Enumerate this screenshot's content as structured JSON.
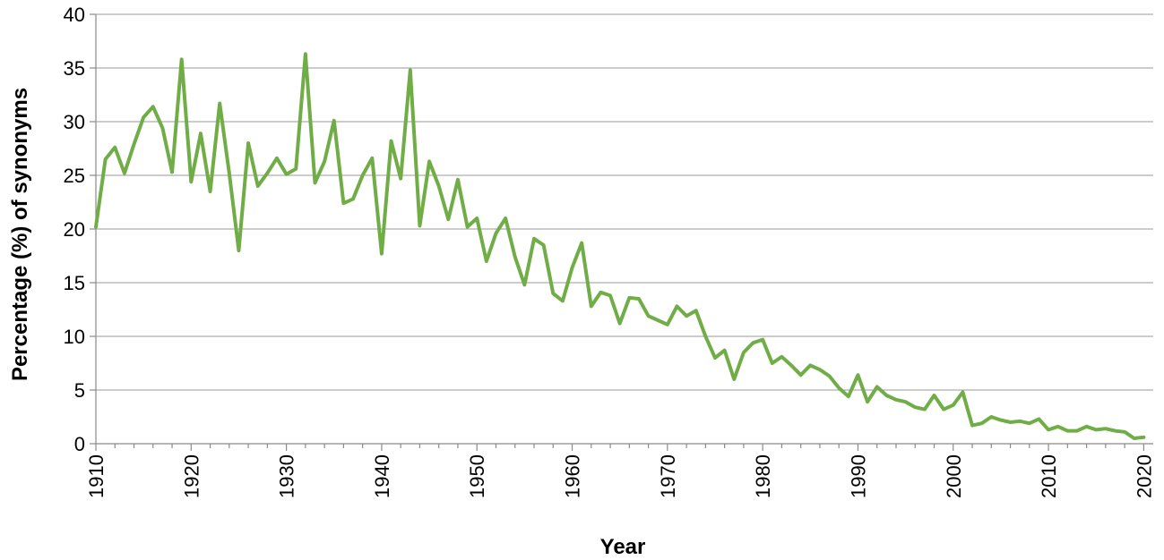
{
  "chart_data": {
    "type": "line",
    "title": "",
    "xlabel": "Year",
    "ylabel": "Percentage (%) of synonyms",
    "xlim": [
      1910,
      2021
    ],
    "ylim": [
      0,
      40
    ],
    "yticks": [
      0,
      5,
      10,
      15,
      20,
      25,
      30,
      35,
      40
    ],
    "xticks": [
      1910,
      1920,
      1930,
      1940,
      1950,
      1960,
      1970,
      1980,
      1990,
      2000,
      2010,
      2020
    ],
    "grid": "horizontal",
    "legend": "none",
    "colors": {
      "series": "#70ad47",
      "grid": "#9a9a9a",
      "axis": "#8a8a8a"
    },
    "series": [
      {
        "x": [
          1910,
          1911,
          1912,
          1913,
          1914,
          1915,
          1916,
          1917,
          1918,
          1919,
          1920,
          1921,
          1922,
          1923,
          1924,
          1925,
          1926,
          1927,
          1928,
          1929,
          1930,
          1931,
          1932,
          1933,
          1934,
          1935,
          1936,
          1937,
          1938,
          1939,
          1940,
          1941,
          1942,
          1943,
          1944,
          1945,
          1946,
          1947,
          1948,
          1949,
          1950,
          1951,
          1952,
          1953,
          1954,
          1955,
          1956,
          1957,
          1958,
          1959,
          1960,
          1961,
          1962,
          1963,
          1964,
          1965,
          1966,
          1967,
          1968,
          1969,
          1970,
          1971,
          1972,
          1973,
          1974,
          1975,
          1976,
          1977,
          1978,
          1979,
          1980,
          1981,
          1982,
          1983,
          1984,
          1985,
          1986,
          1987,
          1988,
          1989,
          1990,
          1991,
          1992,
          1993,
          1994,
          1995,
          1996,
          1997,
          1998,
          1999,
          2000,
          2001,
          2002,
          2003,
          2004,
          2005,
          2006,
          2007,
          2008,
          2009,
          2010,
          2011,
          2012,
          2013,
          2014,
          2015,
          2016,
          2017,
          2018,
          2019,
          2020
        ],
        "values": [
          20.2,
          26.5,
          27.6,
          25.2,
          27.9,
          30.4,
          31.4,
          29.4,
          25.3,
          35.8,
          24.4,
          28.9,
          23.5,
          31.7,
          25.2,
          18.0,
          28.0,
          24.0,
          25.2,
          26.6,
          25.1,
          25.6,
          36.3,
          24.3,
          26.3,
          30.1,
          22.4,
          22.8,
          25.0,
          26.6,
          17.7,
          28.2,
          24.7,
          34.8,
          20.3,
          26.3,
          24.0,
          20.9,
          24.6,
          20.2,
          21.0,
          17.0,
          19.6,
          21.0,
          17.4,
          14.8,
          19.1,
          18.5,
          14.0,
          13.3,
          16.4,
          18.7,
          12.8,
          14.1,
          13.8,
          11.2,
          13.6,
          13.5,
          11.9,
          11.5,
          11.1,
          12.8,
          11.9,
          12.4,
          10.0,
          8.0,
          8.7,
          6.0,
          8.5,
          9.4,
          9.7,
          7.5,
          8.1,
          7.3,
          6.4,
          7.3,
          6.9,
          6.3,
          5.2,
          4.4,
          6.4,
          3.9,
          5.3,
          4.5,
          4.1,
          3.9,
          3.4,
          3.2,
          4.5,
          3.2,
          3.6,
          4.8,
          1.7,
          1.9,
          2.5,
          2.2,
          2.0,
          2.1,
          1.9,
          2.3,
          1.3,
          1.6,
          1.2,
          1.2,
          1.6,
          1.3,
          1.4,
          1.2,
          1.1,
          0.5,
          0.6
        ]
      }
    ]
  }
}
